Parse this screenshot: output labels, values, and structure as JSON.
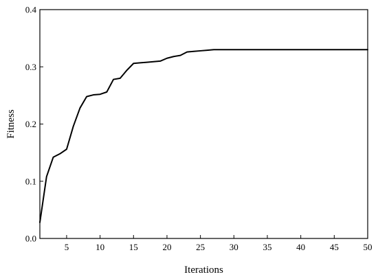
{
  "chart_data": {
    "type": "line",
    "title": "",
    "xlabel": "Iterations",
    "ylabel": "Fitness",
    "xlim": [
      1,
      50
    ],
    "ylim": [
      0,
      0.4
    ],
    "x_ticks": [
      5,
      10,
      15,
      20,
      25,
      30,
      35,
      40,
      45,
      50
    ],
    "y_ticks": [
      0.0,
      0.1,
      0.2,
      0.3,
      0.4
    ],
    "y_tick_labels": [
      "0.0",
      "0.1",
      "0.2",
      "0.3",
      "0.4"
    ],
    "grid": false,
    "legend": "none",
    "line_color": "#000000",
    "series": [
      {
        "x": [
          1,
          2,
          3,
          4,
          5,
          6,
          7,
          8,
          9,
          10,
          11,
          12,
          13,
          14,
          15,
          16,
          17,
          18,
          19,
          20,
          21,
          22,
          23,
          24,
          25,
          26,
          27,
          28,
          29,
          30,
          31,
          32,
          33,
          34,
          35,
          36,
          37,
          38,
          39,
          40,
          41,
          42,
          43,
          44,
          45,
          46,
          47,
          48,
          49,
          50
        ],
        "values": [
          0.028,
          0.108,
          0.142,
          0.148,
          0.156,
          0.196,
          0.228,
          0.248,
          0.251,
          0.252,
          0.256,
          0.278,
          0.28,
          0.294,
          0.306,
          0.307,
          0.308,
          0.309,
          0.31,
          0.315,
          0.318,
          0.32,
          0.326,
          0.327,
          0.328,
          0.329,
          0.33,
          0.33,
          0.33,
          0.33,
          0.33,
          0.33,
          0.33,
          0.33,
          0.33,
          0.33,
          0.33,
          0.33,
          0.33,
          0.33,
          0.33,
          0.33,
          0.33,
          0.33,
          0.33,
          0.33,
          0.33,
          0.33,
          0.33,
          0.33
        ]
      }
    ]
  }
}
